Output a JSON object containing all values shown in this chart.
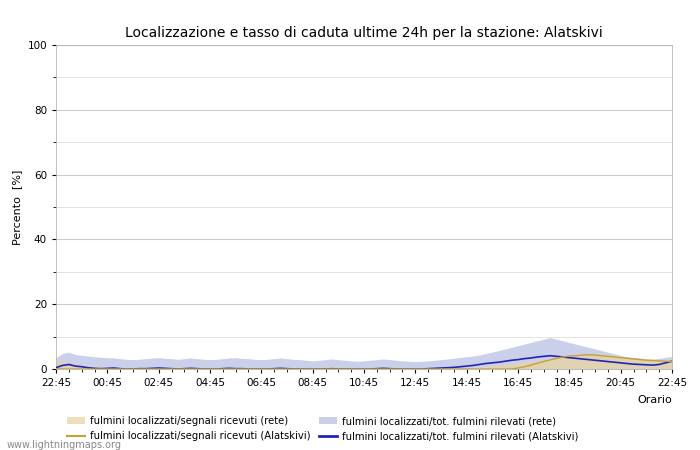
{
  "title": "Localizzazione e tasso di caduta ultime 24h per la stazione: Alatskivi",
  "xlabel": "Orario",
  "ylabel": "Percento  [%]",
  "ylim": [
    0,
    100
  ],
  "yticks": [
    0,
    20,
    40,
    60,
    80,
    100
  ],
  "yticks_minor": [
    10,
    30,
    50,
    70,
    90
  ],
  "background_color": "#ffffff",
  "plot_bg_color": "#ffffff",
  "grid_color": "#cccccc",
  "watermark": "www.lightningmaps.org",
  "fill_rete_segnali_color": "#e8d5a0",
  "fill_rete_segnali_alpha": 0.75,
  "fill_rete_fulmini_color": "#b0b8e0",
  "fill_rete_fulmini_alpha": 0.65,
  "line_alatskivi_segnali_color": "#c8a030",
  "line_alatskivi_fulmini_color": "#2222bb",
  "x_labels": [
    "22:45",
    "00:45",
    "02:45",
    "04:45",
    "06:45",
    "08:45",
    "10:45",
    "12:45",
    "14:45",
    "16:45",
    "18:45",
    "20:45",
    "22:45"
  ],
  "n_points": 97,
  "rete_segnali": [
    2.5,
    2.2,
    1.8,
    1.5,
    1.3,
    1.1,
    0.9,
    0.8,
    0.7,
    0.6,
    0.5,
    0.4,
    0.4,
    0.5,
    0.6,
    0.7,
    0.7,
    0.6,
    0.5,
    0.6,
    0.7,
    0.6,
    0.5,
    0.4,
    0.3,
    0.4,
    0.5,
    0.6,
    0.6,
    0.5,
    0.5,
    0.4,
    0.4,
    0.5,
    0.6,
    0.7,
    0.6,
    0.5,
    0.4,
    0.4,
    0.3,
    0.4,
    0.6,
    0.7,
    0.6,
    0.5,
    0.5,
    0.4,
    0.4,
    0.5,
    0.6,
    0.7,
    0.6,
    0.5,
    0.5,
    0.4,
    0.4,
    0.4,
    0.5,
    0.6,
    0.5,
    0.5,
    0.4,
    0.4,
    0.5,
    0.6,
    0.7,
    0.9,
    1.1,
    1.3,
    1.5,
    1.7,
    1.9,
    2.1,
    2.4,
    2.6,
    2.8,
    3.0,
    3.2,
    3.5,
    3.7,
    3.9,
    4.1,
    4.3,
    4.4,
    4.3,
    4.2,
    4.1,
    3.8,
    3.5,
    3.3,
    3.1,
    2.9,
    2.7,
    2.5,
    2.4,
    2.3
  ],
  "rete_fulmini": [
    3.5,
    4.8,
    5.2,
    4.5,
    4.2,
    4.0,
    3.8,
    3.6,
    3.5,
    3.4,
    3.2,
    3.0,
    2.9,
    3.0,
    3.2,
    3.4,
    3.5,
    3.3,
    3.2,
    3.0,
    3.2,
    3.4,
    3.2,
    3.0,
    2.9,
    3.0,
    3.2,
    3.4,
    3.5,
    3.3,
    3.2,
    3.0,
    2.9,
    3.0,
    3.2,
    3.4,
    3.2,
    3.0,
    2.9,
    2.7,
    2.5,
    2.7,
    2.9,
    3.1,
    2.9,
    2.7,
    2.5,
    2.4,
    2.5,
    2.7,
    2.9,
    3.1,
    2.9,
    2.7,
    2.5,
    2.4,
    2.3,
    2.4,
    2.5,
    2.7,
    2.9,
    3.1,
    3.3,
    3.6,
    3.8,
    4.0,
    4.3,
    4.8,
    5.2,
    5.7,
    6.2,
    6.7,
    7.2,
    7.7,
    8.2,
    8.7,
    9.2,
    9.7,
    9.2,
    8.7,
    8.2,
    7.7,
    7.2,
    6.7,
    6.2,
    5.7,
    5.2,
    4.7,
    4.2,
    3.8,
    3.6,
    3.4,
    3.2,
    3.1,
    3.3,
    3.6,
    3.8
  ],
  "alatskivi_segnali": [
    0.0,
    0.0,
    0.0,
    0.0,
    0.0,
    0.0,
    0.0,
    0.0,
    0.0,
    0.0,
    0.0,
    0.0,
    0.0,
    0.0,
    0.0,
    0.0,
    0.0,
    0.0,
    0.0,
    0.0,
    0.0,
    0.0,
    0.0,
    0.0,
    0.0,
    0.0,
    0.0,
    0.0,
    0.0,
    0.0,
    0.0,
    0.0,
    0.0,
    0.0,
    0.0,
    0.0,
    0.0,
    0.0,
    0.0,
    0.0,
    0.0,
    0.0,
    0.0,
    0.0,
    0.0,
    0.0,
    0.0,
    0.0,
    0.0,
    0.0,
    0.0,
    0.0,
    0.0,
    0.0,
    0.0,
    0.0,
    0.0,
    0.0,
    0.0,
    0.0,
    0.0,
    0.0,
    0.0,
    0.0,
    0.0,
    0.0,
    0.0,
    0.0,
    0.0,
    0.0,
    0.0,
    0.0,
    0.3,
    0.7,
    1.2,
    1.8,
    2.3,
    2.8,
    3.3,
    3.7,
    4.0,
    4.1,
    4.3,
    4.4,
    4.3,
    4.1,
    3.9,
    3.7,
    3.5,
    3.3,
    3.1,
    2.9,
    2.7,
    2.6,
    2.5,
    2.4,
    2.3
  ],
  "alatskivi_fulmini": [
    0.4,
    1.1,
    1.4,
    0.9,
    0.7,
    0.4,
    0.2,
    0.1,
    0.2,
    0.3,
    0.1,
    0.0,
    0.0,
    0.1,
    0.1,
    0.2,
    0.3,
    0.2,
    0.1,
    0.0,
    0.1,
    0.2,
    0.1,
    0.0,
    0.0,
    0.0,
    0.1,
    0.2,
    0.1,
    0.1,
    0.0,
    0.0,
    0.0,
    0.0,
    0.1,
    0.2,
    0.1,
    0.0,
    0.0,
    0.0,
    0.0,
    0.0,
    0.0,
    0.1,
    0.0,
    0.0,
    0.0,
    0.0,
    0.0,
    0.0,
    0.1,
    0.2,
    0.1,
    0.0,
    0.0,
    0.0,
    0.0,
    0.0,
    0.1,
    0.2,
    0.3,
    0.4,
    0.5,
    0.7,
    0.9,
    1.1,
    1.4,
    1.7,
    1.9,
    2.1,
    2.4,
    2.7,
    2.9,
    3.2,
    3.4,
    3.7,
    3.9,
    4.1,
    3.9,
    3.7,
    3.5,
    3.3,
    3.1,
    2.9,
    2.7,
    2.5,
    2.3,
    2.1,
    1.9,
    1.7,
    1.5,
    1.4,
    1.3,
    1.2,
    1.4,
    1.9,
    2.4
  ]
}
